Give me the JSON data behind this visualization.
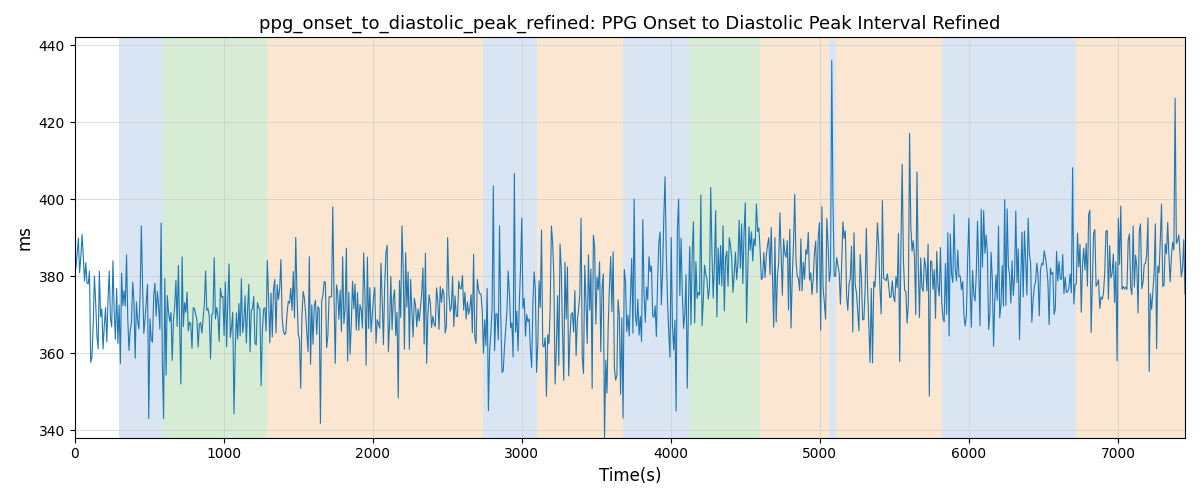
{
  "title": "ppg_onset_to_diastolic_peak_refined: PPG Onset to Diastolic Peak Interval Refined",
  "xlabel": "Time(s)",
  "ylabel": "ms",
  "ylim": [
    338,
    442
  ],
  "xlim": [
    0,
    7450
  ],
  "yticks": [
    340,
    360,
    380,
    400,
    420,
    440
  ],
  "xticks": [
    0,
    1000,
    2000,
    3000,
    4000,
    5000,
    6000,
    7000
  ],
  "line_color": "#1f77b4",
  "line_width": 0.8,
  "bands": [
    {
      "xmin": 300,
      "xmax": 590,
      "color": "#aec6e8",
      "alpha": 0.45
    },
    {
      "xmin": 590,
      "xmax": 1290,
      "color": "#a8d5a2",
      "alpha": 0.45
    },
    {
      "xmin": 1290,
      "xmax": 2740,
      "color": "#f5c99a",
      "alpha": 0.45
    },
    {
      "xmin": 2740,
      "xmax": 3100,
      "color": "#aec6e8",
      "alpha": 0.45
    },
    {
      "xmin": 3100,
      "xmax": 3680,
      "color": "#f5c99a",
      "alpha": 0.45
    },
    {
      "xmin": 3680,
      "xmax": 4120,
      "color": "#aec6e8",
      "alpha": 0.45
    },
    {
      "xmin": 4120,
      "xmax": 4600,
      "color": "#a8d5a2",
      "alpha": 0.45
    },
    {
      "xmin": 4600,
      "xmax": 5060,
      "color": "#f5c99a",
      "alpha": 0.45
    },
    {
      "xmin": 5060,
      "xmax": 5110,
      "color": "#aec6e8",
      "alpha": 0.45
    },
    {
      "xmin": 5110,
      "xmax": 5820,
      "color": "#f5c99a",
      "alpha": 0.45
    },
    {
      "xmin": 5820,
      "xmax": 6720,
      "color": "#aec6e8",
      "alpha": 0.45
    },
    {
      "xmin": 6720,
      "xmax": 7450,
      "color": "#f5c99a",
      "alpha": 0.45
    }
  ],
  "seed": 42,
  "n_points": 900,
  "grid": true,
  "grid_color": "#cccccc",
  "grid_linewidth": 0.5,
  "figsize": [
    12.0,
    5.0
  ],
  "dpi": 100
}
